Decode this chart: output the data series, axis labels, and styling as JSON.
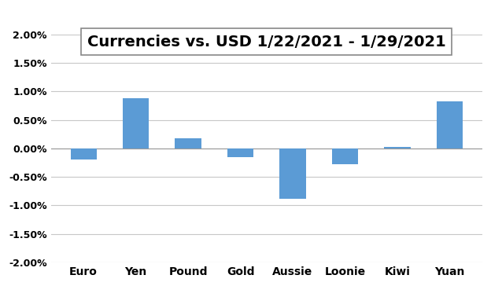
{
  "title": "Currencies vs. USD 1/22/2021 - 1/29/2021",
  "categories": [
    "Euro",
    "Yen",
    "Pound",
    "Gold",
    "Aussie",
    "Loonie",
    "Kiwi",
    "Yuan"
  ],
  "values": [
    -0.002,
    0.0088,
    0.0018,
    -0.0015,
    -0.0088,
    -0.0028,
    0.0003,
    0.0083
  ],
  "bar_color": "#5B9BD5",
  "background_color": "#FFFFFF",
  "ylim": [
    -0.02,
    0.02
  ],
  "yticks": [
    -0.02,
    -0.015,
    -0.01,
    -0.005,
    0.0,
    0.005,
    0.01,
    0.015,
    0.02
  ],
  "grid_color": "#C8C8C8",
  "title_fontsize": 14,
  "tick_fontsize": 9,
  "xtick_fontsize": 10,
  "title_box_color": "#FFFFFF",
  "title_box_edge": "#AAAAAA"
}
